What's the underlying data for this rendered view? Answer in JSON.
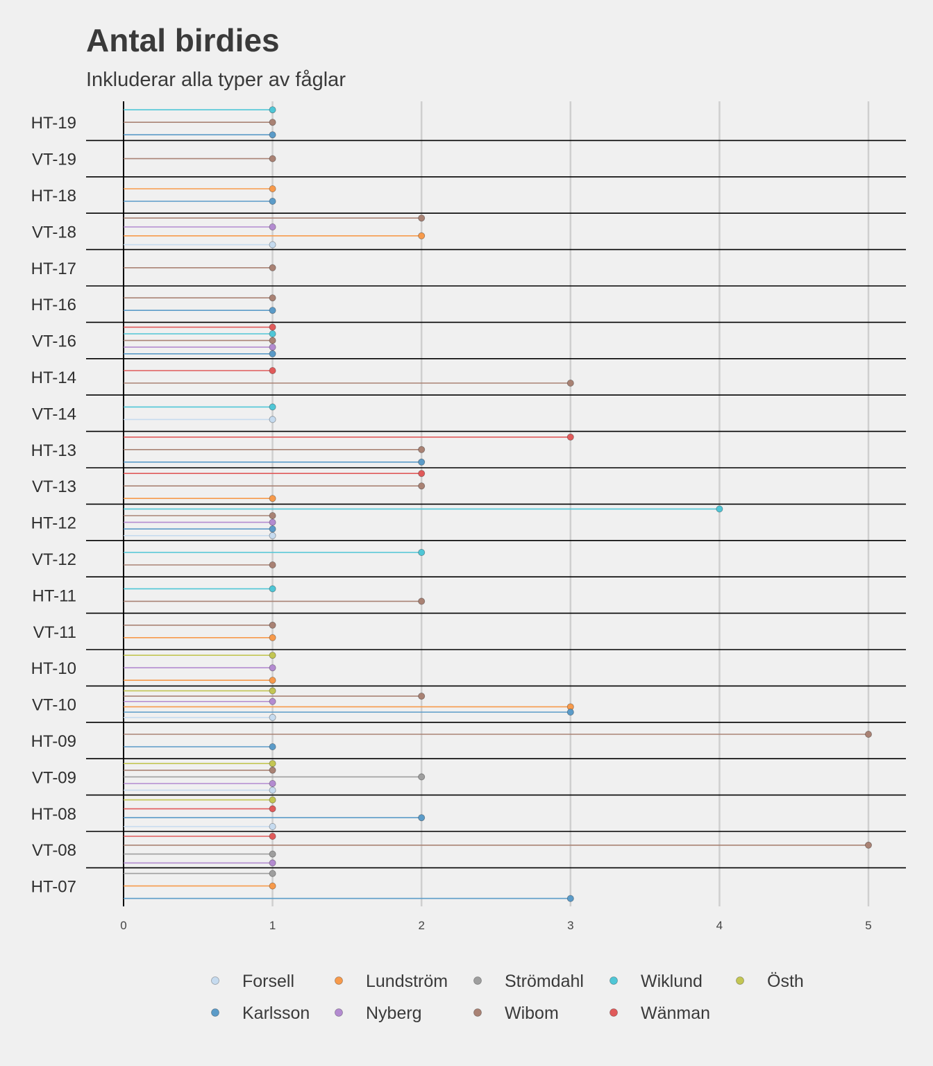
{
  "chart_data": {
    "type": "lollipop",
    "title": "Antal birdies",
    "subtitle": "Inkluderar alla typer av fåglar",
    "xlim": [
      0,
      5
    ],
    "xticks": [
      0,
      1,
      2,
      3,
      4,
      5
    ],
    "grid": "vertical",
    "legend_position": "bottom",
    "player_order": [
      "Forsell",
      "Karlsson",
      "Lundström",
      "Nyberg",
      "Strömdahl",
      "Wibom",
      "Wiklund",
      "Wänman",
      "Östh"
    ],
    "legend": {
      "rows": [
        [
          "Forsell",
          "Lundström",
          "Strömdahl",
          "Wiklund",
          "Östh"
        ],
        [
          "Karlsson",
          "Nyberg",
          "Wibom",
          "Wänman"
        ]
      ]
    },
    "colors": {
      "Forsell": "#c6dbef",
      "Karlsson": "#5b9bc8",
      "Lundström": "#f79a4b",
      "Nyberg": "#b38bd0",
      "Strömdahl": "#9e9e9e",
      "Wibom": "#a98274",
      "Wiklund": "#4fc6d6",
      "Wänman": "#e05a5a",
      "Östh": "#c3c653"
    },
    "categories": [
      {
        "label": "HT-19",
        "values": {
          "Wiklund": 1,
          "Wibom": 1,
          "Karlsson": 1
        }
      },
      {
        "label": "VT-19",
        "values": {
          "Wibom": 1
        }
      },
      {
        "label": "HT-18",
        "values": {
          "Lundström": 1,
          "Karlsson": 1
        }
      },
      {
        "label": "VT-18",
        "values": {
          "Wibom": 2,
          "Nyberg": 1,
          "Lundström": 2,
          "Forsell": 1
        }
      },
      {
        "label": "HT-17",
        "values": {
          "Wibom": 1
        }
      },
      {
        "label": "HT-16",
        "values": {
          "Wibom": 1,
          "Karlsson": 1
        }
      },
      {
        "label": "VT-16",
        "values": {
          "Wänman": 1,
          "Wiklund": 1,
          "Wibom": 1,
          "Nyberg": 1,
          "Karlsson": 1
        }
      },
      {
        "label": "HT-14",
        "values": {
          "Wänman": 1,
          "Wibom": 3
        }
      },
      {
        "label": "VT-14",
        "values": {
          "Wiklund": 1,
          "Forsell": 1
        }
      },
      {
        "label": "HT-13",
        "values": {
          "Wänman": 3,
          "Wibom": 2,
          "Karlsson": 2
        }
      },
      {
        "label": "VT-13",
        "values": {
          "Wänman": 2,
          "Wibom": 2,
          "Lundström": 1
        }
      },
      {
        "label": "HT-12",
        "values": {
          "Wiklund": 4,
          "Wibom": 1,
          "Nyberg": 1,
          "Karlsson": 1,
          "Forsell": 1
        }
      },
      {
        "label": "VT-12",
        "values": {
          "Wiklund": 2,
          "Wibom": 1
        }
      },
      {
        "label": "HT-11",
        "values": {
          "Wiklund": 1,
          "Wibom": 2
        }
      },
      {
        "label": "VT-11",
        "values": {
          "Wibom": 1,
          "Lundström": 1
        }
      },
      {
        "label": "HT-10",
        "values": {
          "Östh": 1,
          "Nyberg": 1,
          "Lundström": 1
        }
      },
      {
        "label": "VT-10",
        "values": {
          "Östh": 1,
          "Wibom": 2,
          "Nyberg": 1,
          "Lundström": 3,
          "Karlsson": 3,
          "Forsell": 1
        }
      },
      {
        "label": "HT-09",
        "values": {
          "Wibom": 5,
          "Karlsson": 1
        }
      },
      {
        "label": "VT-09",
        "values": {
          "Östh": 1,
          "Wibom": 1,
          "Strömdahl": 2,
          "Nyberg": 1,
          "Forsell": 1
        }
      },
      {
        "label": "HT-08",
        "values": {
          "Östh": 1,
          "Wänman": 1,
          "Karlsson": 2,
          "Forsell": 1
        }
      },
      {
        "label": "VT-08",
        "values": {
          "Wänman": 1,
          "Wibom": 5,
          "Strömdahl": 1,
          "Nyberg": 1
        }
      },
      {
        "label": "HT-07",
        "values": {
          "Strömdahl": 1,
          "Lundström": 1,
          "Karlsson": 3
        }
      }
    ]
  }
}
